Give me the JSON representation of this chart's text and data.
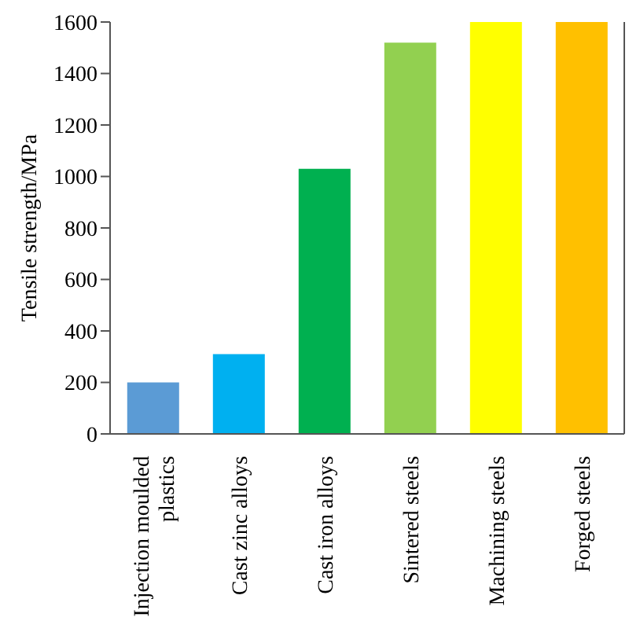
{
  "chart_data": {
    "type": "bar",
    "ylabel": "Tensile strength/MPa",
    "categories": [
      "Injection moulded plastics",
      "Cast zinc alloys",
      "Cast iron alloys",
      "Sintered steels",
      "Machining steels",
      "Forged steels"
    ],
    "values": [
      200,
      310,
      1030,
      1520,
      1600,
      1600
    ],
    "colors": [
      "#5b9bd5",
      "#00b0f0",
      "#00b050",
      "#92d050",
      "#ffff00",
      "#ffc000"
    ],
    "ylim": [
      0,
      1600
    ],
    "yticks": [
      0,
      200,
      400,
      600,
      800,
      1000,
      1200,
      1400,
      1600
    ],
    "grid": false
  }
}
